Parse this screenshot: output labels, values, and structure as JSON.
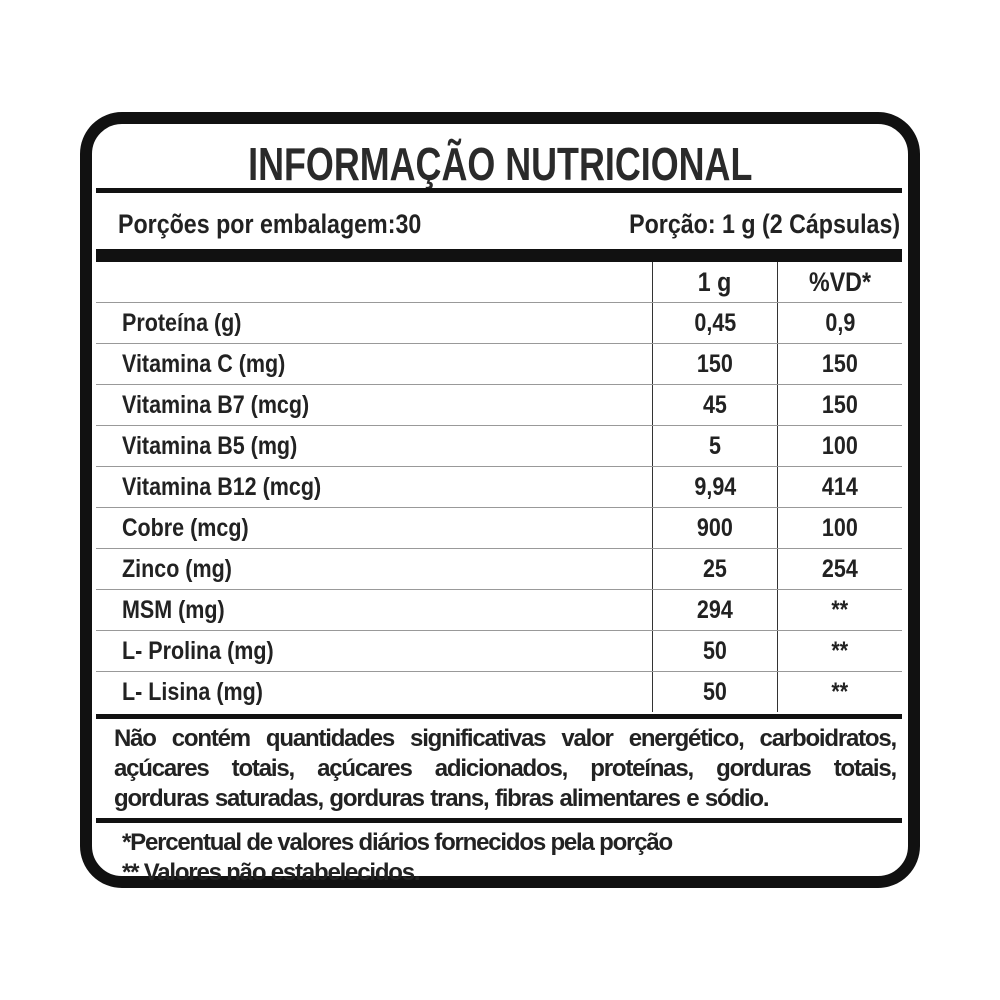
{
  "title": "INFORMAÇÃO NUTRICIONAL",
  "servings_per_package": "Porções por embalagem:30",
  "serving_size": "Porção: 1 g (2 Cápsulas)",
  "columns": [
    "",
    "1 g",
    "%VD*"
  ],
  "rows": [
    {
      "nutrient": "Proteína (g)",
      "amount": "0,45",
      "dv": "0,9"
    },
    {
      "nutrient": "Vitamina C (mg)",
      "amount": "150",
      "dv": "150"
    },
    {
      "nutrient": "Vitamina B7 (mcg)",
      "amount": "45",
      "dv": "150"
    },
    {
      "nutrient": "Vitamina B5 (mg)",
      "amount": "5",
      "dv": "100"
    },
    {
      "nutrient": "Vitamina B12 (mcg)",
      "amount": "9,94",
      "dv": "414"
    },
    {
      "nutrient": "Cobre (mcg)",
      "amount": "900",
      "dv": "100"
    },
    {
      "nutrient": "Zinco (mg)",
      "amount": "25",
      "dv": "254"
    },
    {
      "nutrient": "MSM (mg)",
      "amount": "294",
      "dv": "**"
    },
    {
      "nutrient": "L- Prolina (mg)",
      "amount": "50",
      "dv": "**"
    },
    {
      "nutrient": "L- Lisina (mg)",
      "amount": "50",
      "dv": "**"
    }
  ],
  "disclaimer": "Não contém quantidades significativas valor energético, carboidratos, açúcares totais, açúcares adicionados, proteínas, gorduras totais, gorduras saturadas, gorduras trans, fibras alimentares e sódio.",
  "footnotes": [
    "*Percentual de valores diários fornecidos pela porção",
    "** Valores não estabelecidos."
  ]
}
